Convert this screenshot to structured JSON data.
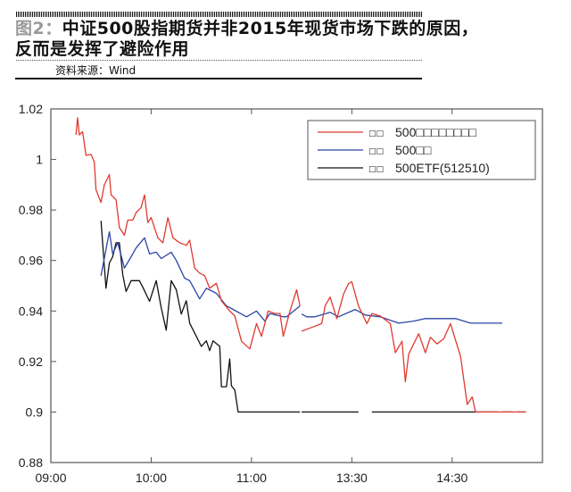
{
  "header": {
    "figure_label": "图2：",
    "title_line1": "中证500股指期货并非2015年现货市场下跌的原因，",
    "title_line2": "反而是发挥了避险作用",
    "source": "资料来源：Wind"
  },
  "chart_data": {
    "type": "line",
    "title": "",
    "xlabel": "",
    "ylabel": "",
    "x_unit": "trading minutes from 09:00 (lunch break collapsed)",
    "xlim": [
      0,
      294
    ],
    "ylim": [
      0.88,
      1.02
    ],
    "grid": false,
    "legend_position": "top-right",
    "x_ticks": [
      {
        "value": 0,
        "label": "09:00"
      },
      {
        "value": 60,
        "label": "10:00"
      },
      {
        "value": 120,
        "label": "11:00"
      },
      {
        "value": 180,
        "label": "13:30"
      },
      {
        "value": 240,
        "label": "14:30"
      }
    ],
    "y_ticks": [
      {
        "value": 0.88,
        "label": "0.88"
      },
      {
        "value": 0.9,
        "label": "0.9"
      },
      {
        "value": 0.92,
        "label": "0.92"
      },
      {
        "value": 0.94,
        "label": "0.94"
      },
      {
        "value": 0.96,
        "label": "0.96"
      },
      {
        "value": 0.98,
        "label": "0.98"
      },
      {
        "value": 1.0,
        "label": "1"
      },
      {
        "value": 1.02,
        "label": "1.02"
      }
    ],
    "series": [
      {
        "name": "500□□□□□□□□",
        "prefix": "□□",
        "color": "#e03a30",
        "x": [
          15,
          16,
          17,
          19,
          21,
          24,
          26,
          27,
          30,
          32,
          35,
          36,
          39,
          41,
          44,
          46,
          49,
          51,
          54,
          56,
          58,
          60,
          64,
          67,
          70,
          73,
          77,
          81,
          83,
          86,
          89,
          92,
          95,
          99,
          102,
          107,
          110,
          114,
          119,
          123,
          126,
          130,
          134,
          137,
          139,
          143,
          147,
          149,
          null,
          150,
          156,
          162,
          164,
          167,
          171,
          175,
          178,
          180,
          184,
          189,
          192,
          197,
          203,
          206,
          210,
          212,
          214,
          220,
          224,
          227,
          231,
          235,
          239,
          245,
          249,
          252,
          254,
          284
        ],
        "y": [
          1.0097,
          1.0165,
          1.0097,
          1.011,
          1.0016,
          1.002,
          0.999,
          0.988,
          0.983,
          0.99,
          0.994,
          0.986,
          0.984,
          0.973,
          0.97,
          0.976,
          0.976,
          0.979,
          0.981,
          0.986,
          0.975,
          0.977,
          0.969,
          0.967,
          0.977,
          0.969,
          0.967,
          0.966,
          0.968,
          0.957,
          0.955,
          0.954,
          0.949,
          0.951,
          0.944,
          0.94,
          0.938,
          0.928,
          0.925,
          0.935,
          0.93,
          0.94,
          0.939,
          0.939,
          0.93,
          0.94,
          0.9484,
          0.942,
          null,
          0.932,
          0.9335,
          0.935,
          0.942,
          0.9455,
          0.937,
          0.9466,
          0.9508,
          0.9516,
          0.942,
          0.935,
          0.939,
          0.938,
          0.935,
          0.9235,
          0.928,
          0.912,
          0.923,
          0.931,
          0.9235,
          0.9296,
          0.927,
          0.929,
          0.935,
          0.922,
          0.903,
          0.906,
          0.9,
          0.9
        ]
      },
      {
        "name": "500□□",
        "prefix": "□□",
        "color": "#2c45a8",
        "x": [
          30,
          35,
          37,
          40,
          44,
          48,
          51,
          56,
          59,
          63,
          66,
          72,
          75,
          80,
          83,
          89,
          93,
          99,
          105,
          108,
          117,
          123,
          128,
          131,
          139,
          141,
          149,
          null,
          150,
          153,
          158,
          167,
          172,
          182,
          188,
          197,
          208,
          217,
          224,
          231,
          242,
          251,
          270
        ],
        "y": [
          0.954,
          0.9714,
          0.9626,
          0.967,
          0.957,
          0.9615,
          0.965,
          0.969,
          0.9626,
          0.9633,
          0.9608,
          0.9633,
          0.96,
          0.953,
          0.952,
          0.9448,
          0.949,
          0.947,
          0.942,
          0.941,
          0.9377,
          0.94,
          0.936,
          0.939,
          0.9377,
          0.9377,
          0.942,
          null,
          0.9388,
          0.9377,
          0.9377,
          0.9395,
          0.9377,
          0.9406,
          0.9384,
          0.9377,
          0.9352,
          0.936,
          0.937,
          0.937,
          0.937,
          0.9352,
          0.9352
        ]
      },
      {
        "name": "500ETF(512510)",
        "prefix": "□□",
        "color": "#111111",
        "x": [
          30,
          33,
          35,
          37,
          39,
          41,
          43,
          45,
          48,
          53,
          55,
          59,
          63,
          66,
          69,
          72,
          75,
          78,
          81,
          83,
          90,
          93,
          95,
          97,
          101,
          102,
          105,
          107,
          108,
          110,
          112,
          149,
          null,
          150,
          184,
          null,
          192,
          267,
          null,
          270,
          276,
          null,
          279,
          284
        ],
        "y": [
          0.9757,
          0.949,
          0.959,
          0.9615,
          0.967,
          0.967,
          0.9544,
          0.9477,
          0.952,
          0.952,
          0.9494,
          0.9438,
          0.952,
          0.9413,
          0.9324,
          0.952,
          0.9484,
          0.9388,
          0.9441,
          0.9352,
          0.926,
          0.9282,
          0.9243,
          0.9282,
          0.926,
          0.91,
          0.91,
          0.921,
          0.9104,
          0.9087,
          0.9,
          0.9,
          null,
          0.9,
          0.9,
          null,
          0.9,
          0.9,
          null,
          0.9,
          0.9,
          null,
          0.9,
          0.9
        ]
      }
    ]
  }
}
